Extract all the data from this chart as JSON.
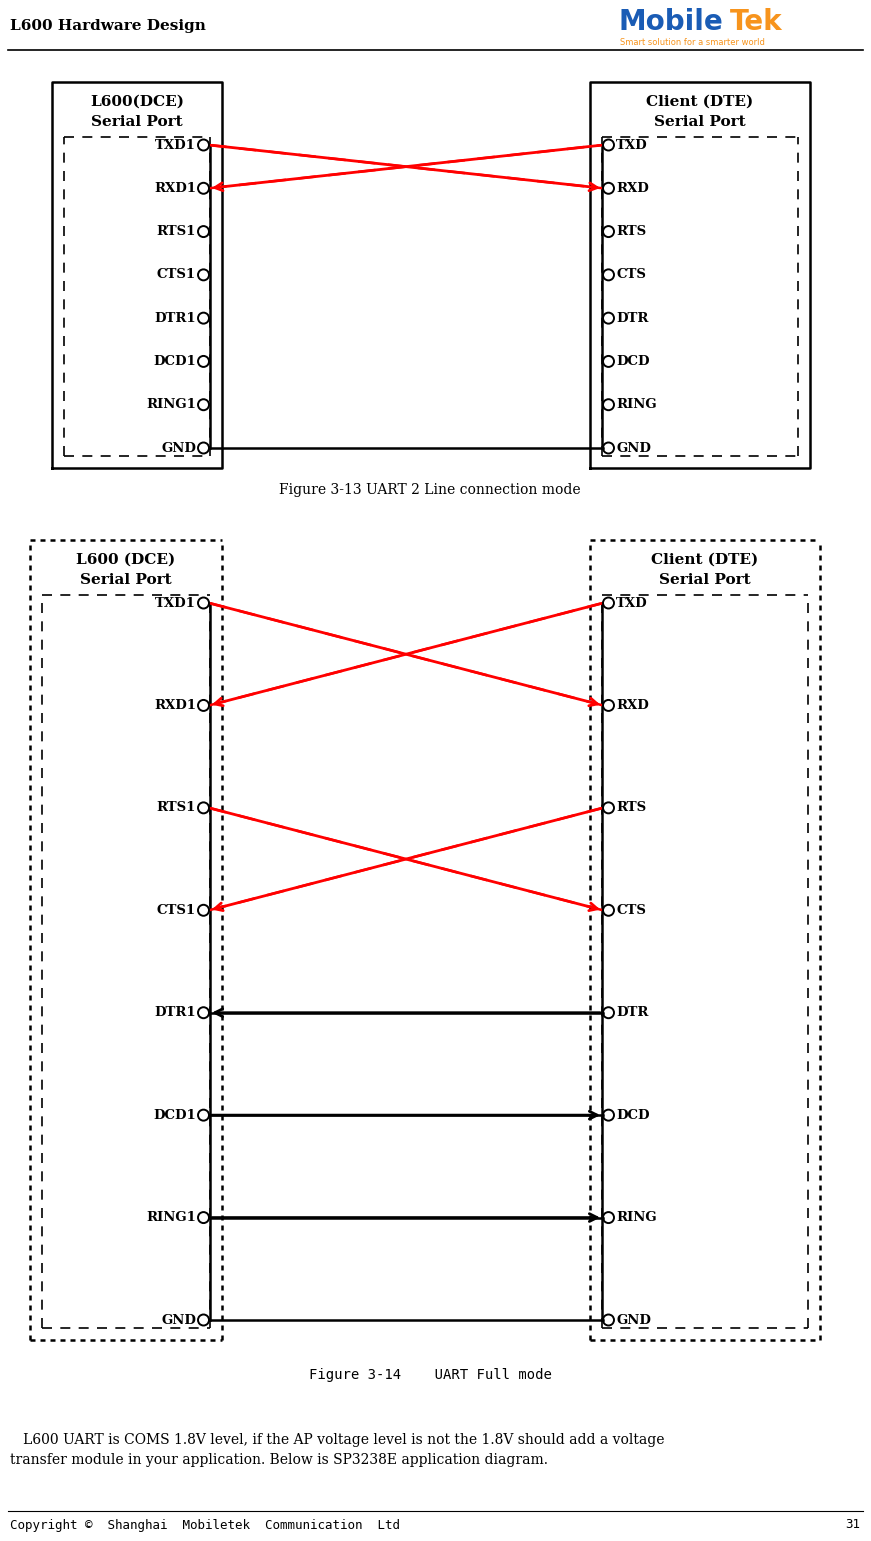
{
  "title_left": "L600 Hardware Design",
  "logo_text_mobile": "Mobile",
  "logo_text_tek": "Tek",
  "logo_sub": "Smart solution for a smarter world",
  "footer_text": "Copyright ©  Shanghai  Mobiletek  Communication  Ltd",
  "footer_page": "31",
  "diag1": {
    "left_title1": "L600(DCE)",
    "left_title2": "Serial Port",
    "right_title1": "Client (DTE)",
    "right_title2": "Serial Port",
    "left_pins": [
      "TXD1",
      "RXD1",
      "RTS1",
      "CTS1",
      "DTR1",
      "DCD1",
      "RING1",
      "GND"
    ],
    "right_pins": [
      "TXD",
      "RXD",
      "RTS",
      "CTS",
      "DTR",
      "DCD",
      "RING",
      "GND"
    ]
  },
  "diag2": {
    "left_title1": "L600 (DCE)",
    "left_title2": "Serial Port",
    "right_title1": "Client (DTE)",
    "right_title2": "Serial Port",
    "left_pins": [
      "TXD1",
      "RXD1",
      "RTS1",
      "CTS1",
      "DTR1",
      "DCD1",
      "RING1",
      "GND"
    ],
    "right_pins": [
      "TXD",
      "RXD",
      "RTS",
      "CTS",
      "DTR",
      "DCD",
      "RING",
      "GND"
    ]
  },
  "caption1": "Figure 3-13 UART 2 Line connection mode",
  "caption2": "Figure 3-14    UART Full mode",
  "body_line1": "   L600 UART is COMS 1.8V level, if the AP voltage level is not the 1.8V should add a voltage",
  "body_line2": "transfer module in your application. Below is SP3238E application diagram.",
  "colors": {
    "red": "#FF0000",
    "black": "#000000",
    "white": "#FFFFFF",
    "blue_logo": "#1a5cb5",
    "orange_logo": "#f7941d"
  }
}
